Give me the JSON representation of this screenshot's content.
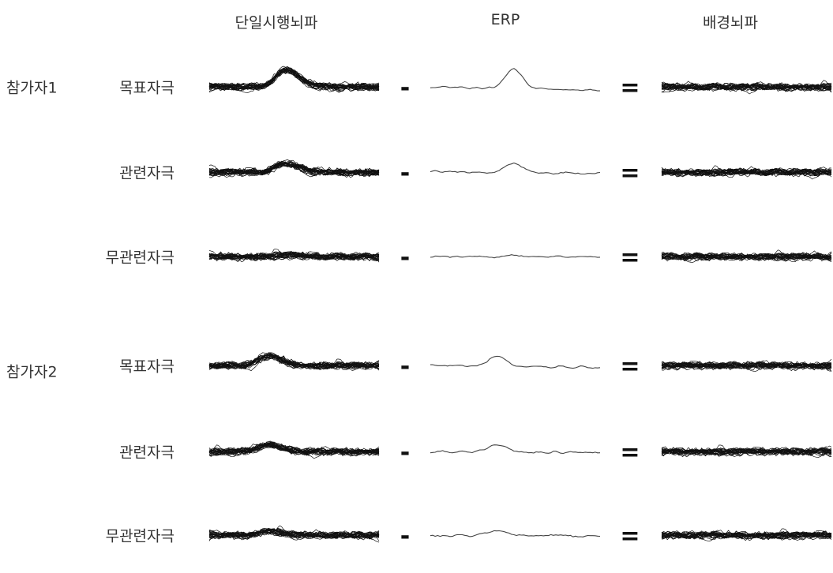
{
  "headers": {
    "single_trial": "단일시행뇌파",
    "erp": "ERP",
    "background": "배경뇌파"
  },
  "operators": {
    "minus": "-",
    "equals": "="
  },
  "participants": [
    {
      "label": "참가자1",
      "rows": [
        {
          "stimulus": "목표자극",
          "erp_peak": 1.0,
          "peak_center": 0.45
        },
        {
          "stimulus": "관련자극",
          "erp_peak": 0.5,
          "peak_center": 0.45
        },
        {
          "stimulus": "무관련자극",
          "erp_peak": 0.1,
          "peak_center": 0.45
        }
      ]
    },
    {
      "label": "참가자2",
      "rows": [
        {
          "stimulus": "목표자극",
          "erp_peak": 0.55,
          "peak_center": 0.35
        },
        {
          "stimulus": "관련자극",
          "erp_peak": 0.4,
          "peak_center": 0.35
        },
        {
          "stimulus": "무관련자극",
          "erp_peak": 0.25,
          "peak_center": 0.35
        }
      ]
    }
  ]
}
